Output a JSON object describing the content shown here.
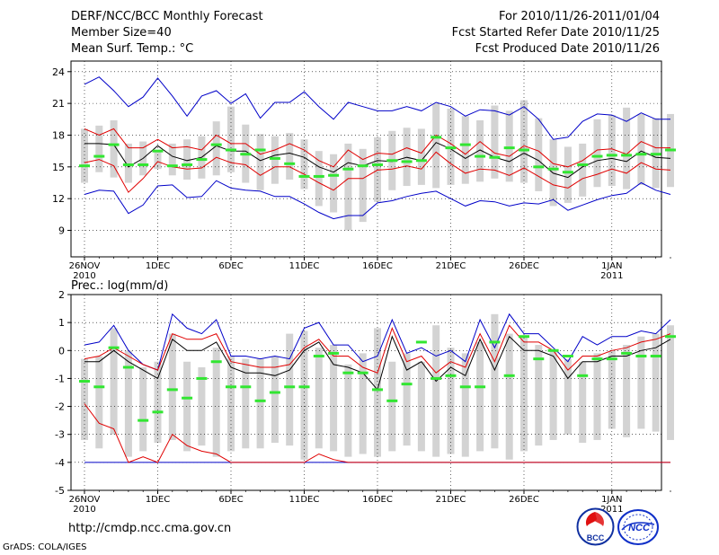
{
  "header": {
    "title": "DERF/NCC/BCC Monthly Forecast",
    "member_size": "Member Size=40",
    "variable_temp": "Mean Surf. Temp.: °C",
    "for_range": "For 2010/11/26-2011/01/04",
    "fcst_started": "Fcst Started Refer Date 2010/11/25",
    "fcst_produced": "Fcst Produced Date 2010/11/26"
  },
  "footer": {
    "url": "http://cmdp.ncc.cma.gov.cn",
    "grads": "GrADS: COLA/IGES",
    "logo_bcc": "BCC",
    "logo_ncc": "NCC"
  },
  "colors": {
    "box": "#d3d3d3",
    "ensemble_mean": "#000000",
    "std_band": "#e00000",
    "extreme_band": "#0000c8",
    "observed_climo": "#32e632",
    "grid": "#000000"
  },
  "chart_data": [
    {
      "type": "line",
      "title": "Mean Surf. Temp.: °C",
      "ylabel": "°C",
      "ylim": [
        6.5,
        25
      ],
      "yticks": [
        9,
        12,
        15,
        18,
        21,
        24
      ],
      "x_tick_labels": [
        {
          "day": 0,
          "label": "26NOV",
          "sub": "2010"
        },
        {
          "day": 5,
          "label": "1DEC",
          "sub": ""
        },
        {
          "day": 10,
          "label": "6DEC",
          "sub": ""
        },
        {
          "day": 15,
          "label": "11DEC",
          "sub": ""
        },
        {
          "day": 20,
          "label": "16DEC",
          "sub": ""
        },
        {
          "day": 25,
          "label": "21DEC",
          "sub": ""
        },
        {
          "day": 30,
          "label": "26DEC",
          "sub": ""
        },
        {
          "day": 36,
          "label": "1JAN",
          "sub": "2011"
        }
      ],
      "box_low": [
        13.5,
        14.5,
        14.0,
        13.5,
        14.2,
        14.8,
        14.2,
        13.8,
        13.9,
        14.2,
        14.5,
        13.5,
        12.8,
        13.4,
        13.8,
        12.9,
        11.3,
        10.7,
        9.0,
        9.8,
        11.7,
        12.8,
        13.2,
        13.3,
        13.0,
        13.3,
        13.4,
        13.6,
        13.9,
        13.6,
        13.5,
        12.7,
        11.3,
        11.6,
        12.2,
        13.1,
        13.2,
        12.9,
        13.3,
        13.0,
        13.1
      ],
      "box_high": [
        18.6,
        18.9,
        19.4,
        17.2,
        17.4,
        16.5,
        17.2,
        17.6,
        17.9,
        19.3,
        20.7,
        19.0,
        18.1,
        17.9,
        18.2,
        17.6,
        16.5,
        16.2,
        17.2,
        16.7,
        17.8,
        18.4,
        18.7,
        18.6,
        21.0,
        20.5,
        19.8,
        19.4,
        20.8,
        20.3,
        21.3,
        19.6,
        17.6,
        16.9,
        17.2,
        19.5,
        19.9,
        20.6,
        20.0,
        19.6,
        20.0
      ],
      "extreme_max": [
        22.8,
        23.5,
        22.2,
        20.7,
        21.6,
        23.4,
        21.7,
        19.8,
        21.7,
        22.2,
        21.0,
        21.9,
        19.6,
        21.1,
        21.1,
        22.1,
        20.7,
        19.5,
        21.1,
        20.7,
        20.3,
        20.3,
        20.7,
        20.3,
        21.1,
        20.7,
        19.8,
        20.4,
        20.3,
        19.9,
        20.7,
        19.5,
        17.6,
        17.8,
        19.3,
        20.0,
        19.9,
        19.3,
        20.1,
        19.5,
        19.5
      ],
      "std_high": [
        18.6,
        18.0,
        18.6,
        16.8,
        16.8,
        17.6,
        16.8,
        16.9,
        16.6,
        18.0,
        17.2,
        17.2,
        16.2,
        16.6,
        17.2,
        16.6,
        15.6,
        15.0,
        16.6,
        15.7,
        16.3,
        16.2,
        16.8,
        16.3,
        18.0,
        17.2,
        16.2,
        17.4,
        16.3,
        16.0,
        17.0,
        16.5,
        15.3,
        15.0,
        15.6,
        16.6,
        16.7,
        16.2,
        17.4,
        16.8,
        16.8
      ],
      "ensemble_mean": [
        17.2,
        17.2,
        17.1,
        15.0,
        15.8,
        17.0,
        16.0,
        15.6,
        15.9,
        17.0,
        16.5,
        16.5,
        15.6,
        16.1,
        16.3,
        15.9,
        15.0,
        14.5,
        15.4,
        15.1,
        15.6,
        15.5,
        15.9,
        15.6,
        17.3,
        16.7,
        15.8,
        16.6,
        15.9,
        15.5,
        16.3,
        15.6,
        14.4,
        14.0,
        15.0,
        15.6,
        15.8,
        15.5,
        16.5,
        15.9,
        15.8
      ],
      "std_low": [
        15.4,
        15.7,
        15.1,
        12.6,
        13.9,
        15.5,
        15.0,
        14.8,
        14.9,
        15.9,
        15.4,
        15.2,
        14.2,
        15.0,
        15.0,
        14.3,
        13.5,
        12.8,
        13.9,
        13.9,
        14.7,
        14.8,
        15.1,
        14.8,
        16.4,
        15.3,
        14.4,
        14.8,
        14.7,
        14.2,
        14.9,
        14.1,
        13.3,
        13.0,
        13.9,
        14.3,
        14.8,
        14.4,
        15.4,
        14.8,
        14.7
      ],
      "extreme_min": [
        12.4,
        12.8,
        12.7,
        10.6,
        11.4,
        13.2,
        13.3,
        12.1,
        12.2,
        13.7,
        13.0,
        12.8,
        12.7,
        12.2,
        12.2,
        11.5,
        10.7,
        10.1,
        10.4,
        10.4,
        11.6,
        11.8,
        12.2,
        12.5,
        12.7,
        12.0,
        11.3,
        11.8,
        11.7,
        11.3,
        11.6,
        11.5,
        11.9,
        10.9,
        11.4,
        11.9,
        12.3,
        12.5,
        13.5,
        12.8,
        12.4
      ],
      "observed_climo": [
        15.1,
        16.0,
        17.1,
        15.2,
        15.2,
        16.5,
        15.1,
        15.2,
        15.7,
        17.1,
        16.6,
        16.2,
        16.6,
        15.8,
        15.3,
        14.1,
        14.1,
        14.2,
        14.8,
        15.1,
        15.2,
        15.6,
        15.5,
        15.6,
        17.8,
        16.8,
        17.1,
        16.0,
        15.9,
        16.8,
        16.6,
        15.0,
        14.8,
        14.5,
        15.2,
        16.0,
        16.1,
        16.1,
        16.2,
        16.2,
        16.6
      ]
    },
    {
      "type": "line",
      "title": "Prec.: log(mm/d)",
      "ylabel": "log(mm/d)",
      "ylim": [
        -5,
        2
      ],
      "yticks": [
        -5,
        -4,
        -3,
        -2,
        -1,
        0,
        1,
        2
      ],
      "x_tick_labels": [
        {
          "day": 0,
          "label": "26NOV",
          "sub": "2010"
        },
        {
          "day": 5,
          "label": "1DEC",
          "sub": ""
        },
        {
          "day": 10,
          "label": "6DEC",
          "sub": ""
        },
        {
          "day": 15,
          "label": "11DEC",
          "sub": ""
        },
        {
          "day": 20,
          "label": "16DEC",
          "sub": ""
        },
        {
          "day": 25,
          "label": "21DEC",
          "sub": ""
        },
        {
          "day": 30,
          "label": "26DEC",
          "sub": ""
        },
        {
          "day": 36,
          "label": "1JAN",
          "sub": "2011"
        }
      ],
      "box_low": [
        -3.2,
        -3.5,
        -3.0,
        -3.8,
        -3.6,
        -3.3,
        -3.2,
        -3.6,
        -3.4,
        -3.8,
        -3.6,
        -3.5,
        -3.5,
        -3.3,
        -3.4,
        -3.9,
        -3.5,
        -3.6,
        -3.8,
        -3.7,
        -3.8,
        -3.6,
        -3.4,
        -3.6,
        -3.8,
        -3.7,
        -3.8,
        -3.6,
        -3.5,
        -3.9,
        -3.6,
        -3.4,
        -3.2,
        -3.0,
        -3.3,
        -3.2,
        -2.8,
        -3.1,
        -2.8,
        -2.9,
        -3.2
      ],
      "box_high": [
        -0.3,
        -0.2,
        0.8,
        0.0,
        -0.6,
        -0.4,
        0.6,
        -0.4,
        -0.6,
        0.1,
        -0.2,
        -0.3,
        -0.3,
        -0.2,
        0.6,
        0.7,
        0.1,
        0.2,
        -0.5,
        -0.1,
        0.8,
        -0.4,
        -0.1,
        -0.4,
        0.9,
        0.1,
        -0.1,
        0.3,
        1.3,
        0.6,
        0.5,
        0.2,
        0.0,
        -0.3,
        -0.4,
        -0.1,
        0.0,
        0.2,
        0.5,
        0.6,
        0.9
      ],
      "extreme_max": [
        0.2,
        0.3,
        0.9,
        0.0,
        -0.5,
        -0.7,
        1.3,
        0.8,
        0.6,
        1.1,
        -0.2,
        -0.2,
        -0.3,
        -0.2,
        -0.3,
        0.8,
        1.0,
        0.2,
        0.2,
        -0.4,
        -0.2,
        1.1,
        -0.1,
        0.1,
        -0.2,
        0.0,
        -0.4,
        1.1,
        0.1,
        1.3,
        0.6,
        0.6,
        0.1,
        -0.4,
        0.5,
        0.2,
        0.5,
        0.5,
        0.7,
        0.6,
        1.1
      ],
      "std_high": [
        -0.3,
        -0.2,
        0.1,
        -0.2,
        -0.5,
        -0.7,
        0.6,
        0.4,
        0.4,
        0.6,
        -0.4,
        -0.5,
        -0.6,
        -0.6,
        -0.5,
        0.1,
        0.4,
        -0.2,
        -0.2,
        -0.6,
        -0.8,
        0.8,
        -0.4,
        -0.2,
        -0.8,
        -0.4,
        -0.6,
        0.6,
        -0.4,
        0.9,
        0.3,
        0.3,
        0.0,
        -0.7,
        -0.2,
        -0.2,
        0.0,
        0.1,
        0.3,
        0.4,
        0.6
      ],
      "ensemble_mean": [
        -0.4,
        -0.4,
        0.0,
        -0.4,
        -0.7,
        -1.0,
        0.4,
        0.0,
        0.0,
        0.3,
        -0.6,
        -0.8,
        -0.8,
        -0.9,
        -0.7,
        0.0,
        0.3,
        -0.5,
        -0.6,
        -0.8,
        -1.4,
        0.5,
        -0.7,
        -0.4,
        -1.1,
        -0.6,
        -0.9,
        0.4,
        -0.7,
        0.5,
        0.0,
        0.0,
        -0.2,
        -1.0,
        -0.4,
        -0.4,
        -0.2,
        -0.2,
        0.0,
        0.1,
        0.4
      ],
      "std_low": [
        -1.9,
        -2.6,
        -2.8,
        -4.0,
        -3.8,
        -4.0,
        -3.0,
        -3.4,
        -3.6,
        -3.7,
        -4.0,
        -4.0,
        -4.0,
        -4.0,
        -4.0,
        -4.0,
        -3.7,
        -3.9,
        -4.0,
        -4.0,
        -4.0,
        -4.0,
        -4.0,
        -4.0,
        -4.0,
        -4.0,
        -4.0,
        -4.0,
        -4.0,
        -4.0,
        -4.0,
        -4.0,
        -4.0,
        -4.0,
        -4.0,
        -4.0,
        -4.0,
        -4.0,
        -4.0,
        -4.0,
        -4.0
      ],
      "extreme_min": [
        -4.0,
        -4.0,
        -4.0,
        -4.0,
        -4.0,
        -4.0,
        -4.0,
        -4.0,
        -4.0,
        -4.0,
        -4.0,
        -4.0,
        -4.0,
        -4.0,
        -4.0,
        -4.0,
        -4.0,
        -4.0,
        -4.0,
        -4.0,
        -4.0,
        -4.0,
        -4.0,
        -4.0,
        -4.0,
        -4.0,
        -4.0,
        -4.0,
        -4.0,
        -4.0,
        -4.0,
        -4.0,
        -4.0,
        -4.0,
        -4.0,
        -4.0,
        -4.0,
        -4.0,
        -4.0,
        -4.0,
        -4.0
      ],
      "observed_climo": [
        -1.1,
        -1.3,
        0.1,
        -0.6,
        -2.5,
        -2.2,
        -1.4,
        -1.7,
        -1.0,
        -0.4,
        -1.3,
        -1.3,
        -1.8,
        -1.5,
        -1.3,
        -1.3,
        -0.2,
        -0.1,
        -0.8,
        -0.8,
        -1.4,
        -1.8,
        -1.2,
        0.3,
        -1.0,
        -0.9,
        -1.3,
        -1.3,
        0.3,
        -0.9,
        0.5,
        -0.3,
        0.0,
        -0.2,
        -0.9,
        -0.3,
        -0.3,
        -0.1,
        -0.2,
        -0.2,
        0.5
      ]
    }
  ]
}
